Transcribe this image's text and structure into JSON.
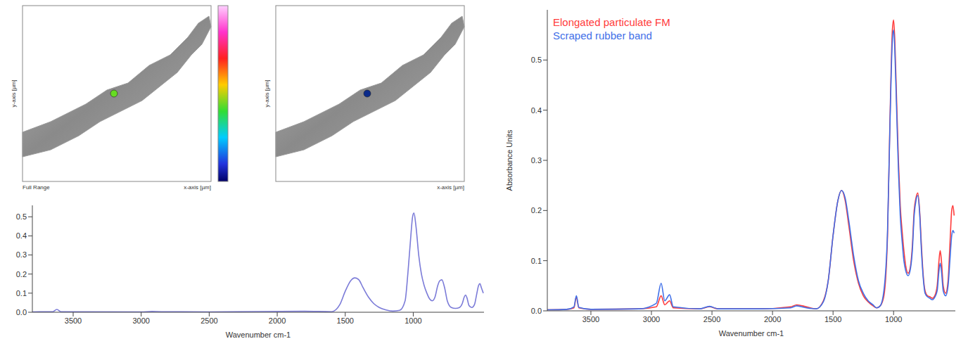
{
  "maps": {
    "panels": [
      {
        "y_axis_title": "y-axis [µm]",
        "x_axis_title": "x-axis [µm]",
        "caption": "Full Range"
      },
      {
        "y_axis_title": "y-axis [µm]",
        "x_axis_title": "x-axis [µm]"
      }
    ]
  },
  "chart_data": [
    {
      "type": "line",
      "x_label": "Wavenumber cm-1",
      "x": [
        3800,
        3650,
        3620,
        3590,
        3000,
        2920,
        2850,
        2500,
        1800,
        1600,
        1540,
        1500,
        1460,
        1430,
        1400,
        1370,
        1330,
        1290,
        1250,
        1200,
        1150,
        1100,
        1060,
        1040,
        1020,
        1005,
        995,
        980,
        960,
        940,
        920,
        900,
        880,
        860,
        840,
        820,
        805,
        790,
        770,
        750,
        720,
        690,
        660,
        640,
        625,
        615,
        605,
        590,
        570,
        550,
        535,
        520,
        510,
        500,
        485
      ],
      "values": [
        0.002,
        0.003,
        0.015,
        0.003,
        0.002,
        0.004,
        0.003,
        0.002,
        0.005,
        0.003,
        0.04,
        0.11,
        0.165,
        0.18,
        0.17,
        0.13,
        0.08,
        0.045,
        0.025,
        0.012,
        0.006,
        0.01,
        0.06,
        0.2,
        0.38,
        0.5,
        0.52,
        0.45,
        0.3,
        0.2,
        0.14,
        0.1,
        0.07,
        0.06,
        0.08,
        0.14,
        0.165,
        0.17,
        0.13,
        0.06,
        0.025,
        0.02,
        0.025,
        0.045,
        0.08,
        0.09,
        0.075,
        0.035,
        0.025,
        0.04,
        0.09,
        0.14,
        0.15,
        0.13,
        0.1
      ],
      "color": "#7b7bd8",
      "xlim": [
        3800,
        480
      ],
      "xticks": [
        3500,
        3000,
        2500,
        2000,
        1500,
        1000
      ],
      "ylim": [
        0,
        0.56
      ],
      "yticks": [
        {
          "value": 0,
          "label": "0.0"
        },
        0.1,
        0.2,
        0.3,
        0.4,
        0.5
      ]
    },
    {
      "type": "line",
      "x_label": "Wavenumber cm-1",
      "y_label": "Absorbance Units",
      "legend": "upper left",
      "x": [
        3860,
        3700,
        3640,
        3620,
        3600,
        3500,
        3100,
        2960,
        2920,
        2890,
        2850,
        2820,
        2600,
        2520,
        2450,
        2100,
        1850,
        1800,
        1720,
        1640,
        1580,
        1540,
        1500,
        1460,
        1430,
        1400,
        1370,
        1330,
        1290,
        1250,
        1210,
        1170,
        1140,
        1110,
        1080,
        1050,
        1030,
        1010,
        1000,
        990,
        975,
        960,
        945,
        930,
        915,
        900,
        880,
        860,
        845,
        830,
        815,
        800,
        785,
        770,
        755,
        740,
        720,
        700,
        680,
        660,
        640,
        625,
        615,
        605,
        590,
        570,
        550,
        535,
        520,
        510,
        500
      ],
      "series": [
        {
          "name": "Elongated particulate FM",
          "color": "#ff3b3b",
          "values": [
            0.002,
            0.003,
            0.006,
            0.028,
            0.006,
            0.003,
            0.004,
            0.008,
            0.03,
            0.012,
            0.02,
            0.006,
            0.004,
            0.008,
            0.004,
            0.004,
            0.008,
            0.012,
            0.008,
            0.004,
            0.02,
            0.06,
            0.15,
            0.22,
            0.24,
            0.22,
            0.17,
            0.1,
            0.055,
            0.03,
            0.018,
            0.01,
            0.006,
            0.01,
            0.03,
            0.15,
            0.38,
            0.56,
            0.58,
            0.54,
            0.42,
            0.3,
            0.21,
            0.16,
            0.12,
            0.09,
            0.075,
            0.09,
            0.13,
            0.2,
            0.225,
            0.235,
            0.2,
            0.13,
            0.07,
            0.04,
            0.03,
            0.028,
            0.025,
            0.03,
            0.05,
            0.1,
            0.12,
            0.1,
            0.05,
            0.035,
            0.06,
            0.13,
            0.2,
            0.21,
            0.19
          ]
        },
        {
          "name": "Scraped rubber band",
          "color": "#3f6fe8",
          "values": [
            0.002,
            0.003,
            0.008,
            0.03,
            0.007,
            0.003,
            0.004,
            0.015,
            0.055,
            0.02,
            0.032,
            0.008,
            0.004,
            0.009,
            0.004,
            0.004,
            0.006,
            0.01,
            0.006,
            0.004,
            0.018,
            0.06,
            0.15,
            0.22,
            0.24,
            0.225,
            0.18,
            0.11,
            0.06,
            0.035,
            0.02,
            0.012,
            0.006,
            0.01,
            0.04,
            0.16,
            0.37,
            0.54,
            0.56,
            0.52,
            0.4,
            0.28,
            0.19,
            0.14,
            0.1,
            0.08,
            0.07,
            0.085,
            0.12,
            0.19,
            0.22,
            0.23,
            0.195,
            0.12,
            0.065,
            0.035,
            0.028,
            0.025,
            0.022,
            0.027,
            0.04,
            0.08,
            0.095,
            0.08,
            0.04,
            0.03,
            0.05,
            0.1,
            0.15,
            0.16,
            0.155
          ]
        }
      ],
      "xlim": [
        3860,
        490
      ],
      "xticks": [
        3500,
        3000,
        2500,
        2000,
        1500,
        1000
      ],
      "ylim": [
        0,
        0.6
      ],
      "yticks": [
        {
          "value": 0,
          "label": "0.0"
        },
        0.1,
        0.2,
        0.3,
        0.4,
        0.5
      ]
    }
  ]
}
